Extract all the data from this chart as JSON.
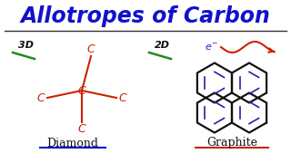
{
  "title": "Allotropes of Carbon",
  "title_color": "#1111cc",
  "title_fontsize": 17,
  "bg_color": "#ffffff",
  "label_diamond": "Diamond",
  "label_graphite": "Graphite",
  "label_color": "#111111",
  "label_fontsize": 9,
  "label_underline_diamond_color": "#1111cc",
  "label_underline_graphite_color": "#cc2200",
  "dim_3d_text": "3D",
  "dim_2d_text": "2D",
  "dim_color": "#111111",
  "dim_fontsize": 8,
  "green_line_color": "#228B22",
  "carbon_color": "#cc2200",
  "bond_color": "#cc2200",
  "graphite_outline_color": "#111111",
  "graphite_bond_color": "#2222aa",
  "e_arrow_color": "#cc2200",
  "e_text_color": "#2222cc"
}
